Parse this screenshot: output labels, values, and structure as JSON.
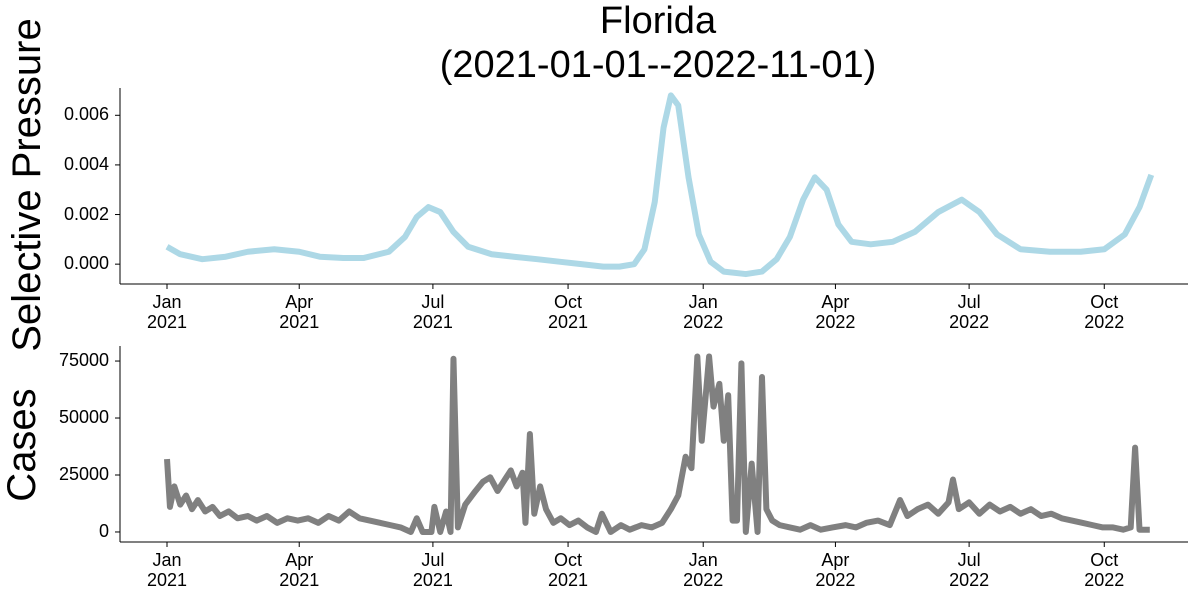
{
  "chart_data": [
    {
      "type": "line",
      "title": "Florida\n(2021-01-01--2022-11-01)",
      "y_label": "Selective Pressure",
      "xlim": [
        "2020-11-30",
        "2022-11-27"
      ],
      "xticks": [
        {
          "value": "2021-01-01",
          "label": "Jan\n2021"
        },
        {
          "value": "2021-04-01",
          "label": "Apr\n2021"
        },
        {
          "value": "2021-07-01",
          "label": "Jul\n2021"
        },
        {
          "value": "2021-10-01",
          "label": "Oct\n2021"
        },
        {
          "value": "2022-01-01",
          "label": "Jan\n2022"
        },
        {
          "value": "2022-04-01",
          "label": "Apr\n2022"
        },
        {
          "value": "2022-07-01",
          "label": "Jul\n2022"
        },
        {
          "value": "2022-10-01",
          "label": "Oct\n2022"
        }
      ],
      "ylim": [
        -0.0008,
        0.0071
      ],
      "yticks": [
        {
          "value": 0,
          "label": "0.000"
        },
        0.002,
        0.004,
        0.006
      ],
      "color": "#add8e6",
      "x": [
        "2021-01-01",
        "2021-01-10",
        "2021-01-25",
        "2021-02-10",
        "2021-02-25",
        "2021-03-15",
        "2021-04-01",
        "2021-04-15",
        "2021-05-01",
        "2021-05-15",
        "2021-06-01",
        "2021-06-12",
        "2021-06-20",
        "2021-06-28",
        "2021-07-06",
        "2021-07-15",
        "2021-07-25",
        "2021-08-10",
        "2021-08-25",
        "2021-09-10",
        "2021-09-25",
        "2021-10-10",
        "2021-10-25",
        "2021-11-05",
        "2021-11-15",
        "2021-11-22",
        "2021-11-29",
        "2021-12-05",
        "2021-12-10",
        "2021-12-15",
        "2021-12-22",
        "2021-12-29",
        "2022-01-06",
        "2022-01-15",
        "2022-01-30",
        "2022-02-10",
        "2022-02-20",
        "2022-03-01",
        "2022-03-10",
        "2022-03-18",
        "2022-03-26",
        "2022-04-03",
        "2022-04-12",
        "2022-04-25",
        "2022-05-10",
        "2022-05-25",
        "2022-06-10",
        "2022-06-26",
        "2022-07-08",
        "2022-07-20",
        "2022-08-05",
        "2022-08-25",
        "2022-09-15",
        "2022-10-01",
        "2022-10-15",
        "2022-10-25",
        "2022-11-02"
      ],
      "values": [
        0.0007,
        0.0004,
        0.0002,
        0.0003,
        0.0005,
        0.0006,
        0.0005,
        0.0003,
        0.00025,
        0.00025,
        0.0005,
        0.0011,
        0.0019,
        0.0023,
        0.0021,
        0.0013,
        0.0007,
        0.0004,
        0.0003,
        0.0002,
        0.0001,
        0.0,
        -0.0001,
        -0.0001,
        0.0,
        0.0006,
        0.0025,
        0.0055,
        0.0068,
        0.0064,
        0.0035,
        0.0012,
        0.0001,
        -0.0003,
        -0.0004,
        -0.0003,
        0.0002,
        0.0011,
        0.0026,
        0.0035,
        0.003,
        0.0016,
        0.0009,
        0.0008,
        0.0009,
        0.0013,
        0.0021,
        0.0026,
        0.0021,
        0.0012,
        0.0006,
        0.0005,
        0.0005,
        0.0006,
        0.0012,
        0.0023,
        0.0036
      ]
    },
    {
      "type": "line",
      "y_label": "Cases",
      "xlim": [
        "2020-11-30",
        "2022-11-27"
      ],
      "xticks": [
        {
          "value": "2021-01-01",
          "label": "Jan\n2021"
        },
        {
          "value": "2021-04-01",
          "label": "Apr\n2021"
        },
        {
          "value": "2021-07-01",
          "label": "Jul\n2021"
        },
        {
          "value": "2021-10-01",
          "label": "Oct\n2021"
        },
        {
          "value": "2022-01-01",
          "label": "Jan\n2022"
        },
        {
          "value": "2022-04-01",
          "label": "Apr\n2022"
        },
        {
          "value": "2022-07-01",
          "label": "Jul\n2022"
        },
        {
          "value": "2022-10-01",
          "label": "Oct\n2022"
        }
      ],
      "ylim": [
        -4400,
        81600
      ],
      "yticks": [
        0,
        25000,
        50000,
        75000
      ],
      "color": "#808080",
      "x": [
        "2021-01-01",
        "2021-01-03",
        "2021-01-06",
        "2021-01-10",
        "2021-01-14",
        "2021-01-18",
        "2021-01-22",
        "2021-01-27",
        "2021-02-01",
        "2021-02-06",
        "2021-02-12",
        "2021-02-18",
        "2021-02-25",
        "2021-03-03",
        "2021-03-10",
        "2021-03-17",
        "2021-03-24",
        "2021-03-31",
        "2021-04-07",
        "2021-04-14",
        "2021-04-21",
        "2021-04-28",
        "2021-05-05",
        "2021-05-12",
        "2021-05-19",
        "2021-05-26",
        "2021-06-02",
        "2021-06-09",
        "2021-06-16",
        "2021-06-20",
        "2021-06-24",
        "2021-06-30",
        "2021-07-02",
        "2021-07-06",
        "2021-07-10",
        "2021-07-13",
        "2021-07-15",
        "2021-07-18",
        "2021-07-23",
        "2021-07-30",
        "2021-08-04",
        "2021-08-09",
        "2021-08-14",
        "2021-08-19",
        "2021-08-23",
        "2021-08-27",
        "2021-08-31",
        "2021-09-02",
        "2021-09-05",
        "2021-09-08",
        "2021-09-12",
        "2021-09-16",
        "2021-09-21",
        "2021-09-26",
        "2021-10-02",
        "2021-10-08",
        "2021-10-14",
        "2021-10-20",
        "2021-10-24",
        "2021-10-30",
        "2021-11-06",
        "2021-11-12",
        "2021-11-20",
        "2021-11-27",
        "2021-12-04",
        "2021-12-10",
        "2021-12-15",
        "2021-12-20",
        "2021-12-24",
        "2021-12-28",
        "2021-12-31",
        "2022-01-03",
        "2022-01-05",
        "2022-01-08",
        "2022-01-12",
        "2022-01-15",
        "2022-01-18",
        "2022-01-21",
        "2022-01-24",
        "2022-01-27",
        "2022-01-30",
        "2022-02-03",
        "2022-02-07",
        "2022-02-10",
        "2022-02-13",
        "2022-02-17",
        "2022-02-22",
        "2022-03-01",
        "2022-03-08",
        "2022-03-15",
        "2022-03-22",
        "2022-03-30",
        "2022-04-08",
        "2022-04-15",
        "2022-04-22",
        "2022-04-30",
        "2022-05-08",
        "2022-05-15",
        "2022-05-20",
        "2022-05-27",
        "2022-06-03",
        "2022-06-10",
        "2022-06-17",
        "2022-06-20",
        "2022-06-24",
        "2022-07-01",
        "2022-07-08",
        "2022-07-15",
        "2022-07-22",
        "2022-07-29",
        "2022-08-05",
        "2022-08-12",
        "2022-08-19",
        "2022-08-26",
        "2022-09-02",
        "2022-09-09",
        "2022-09-16",
        "2022-09-23",
        "2022-09-30",
        "2022-10-07",
        "2022-10-14",
        "2022-10-19",
        "2022-10-22",
        "2022-10-25",
        "2022-11-01"
      ],
      "values": [
        32000,
        11000,
        20000,
        12000,
        16000,
        10000,
        14000,
        9000,
        11000,
        7000,
        9000,
        6000,
        7000,
        5000,
        7000,
        4000,
        6000,
        5000,
        6000,
        4000,
        7000,
        5000,
        9000,
        6000,
        5000,
        4000,
        3000,
        2000,
        0,
        6000,
        0,
        0,
        11000,
        0,
        9000,
        0,
        76000,
        2000,
        12000,
        18000,
        22000,
        24000,
        18000,
        23000,
        27000,
        20000,
        26000,
        4000,
        43000,
        8000,
        20000,
        10000,
        4000,
        6000,
        3000,
        5000,
        2000,
        0,
        8000,
        0,
        3000,
        1000,
        3000,
        2000,
        4000,
        10000,
        16000,
        33000,
        28000,
        77000,
        40000,
        62000,
        77000,
        55000,
        65000,
        40000,
        60000,
        5000,
        5000,
        74000,
        0,
        30000,
        0,
        68000,
        10000,
        5000,
        3000,
        2000,
        1000,
        3000,
        1000,
        2000,
        3000,
        2000,
        4000,
        5000,
        3000,
        14000,
        7000,
        10000,
        12000,
        8000,
        13000,
        23000,
        10000,
        13000,
        8000,
        12000,
        9000,
        11000,
        8000,
        10000,
        7000,
        8000,
        6000,
        5000,
        4000,
        3000,
        2000,
        2000,
        1000,
        2000,
        37000,
        1000,
        1000
      ]
    }
  ]
}
